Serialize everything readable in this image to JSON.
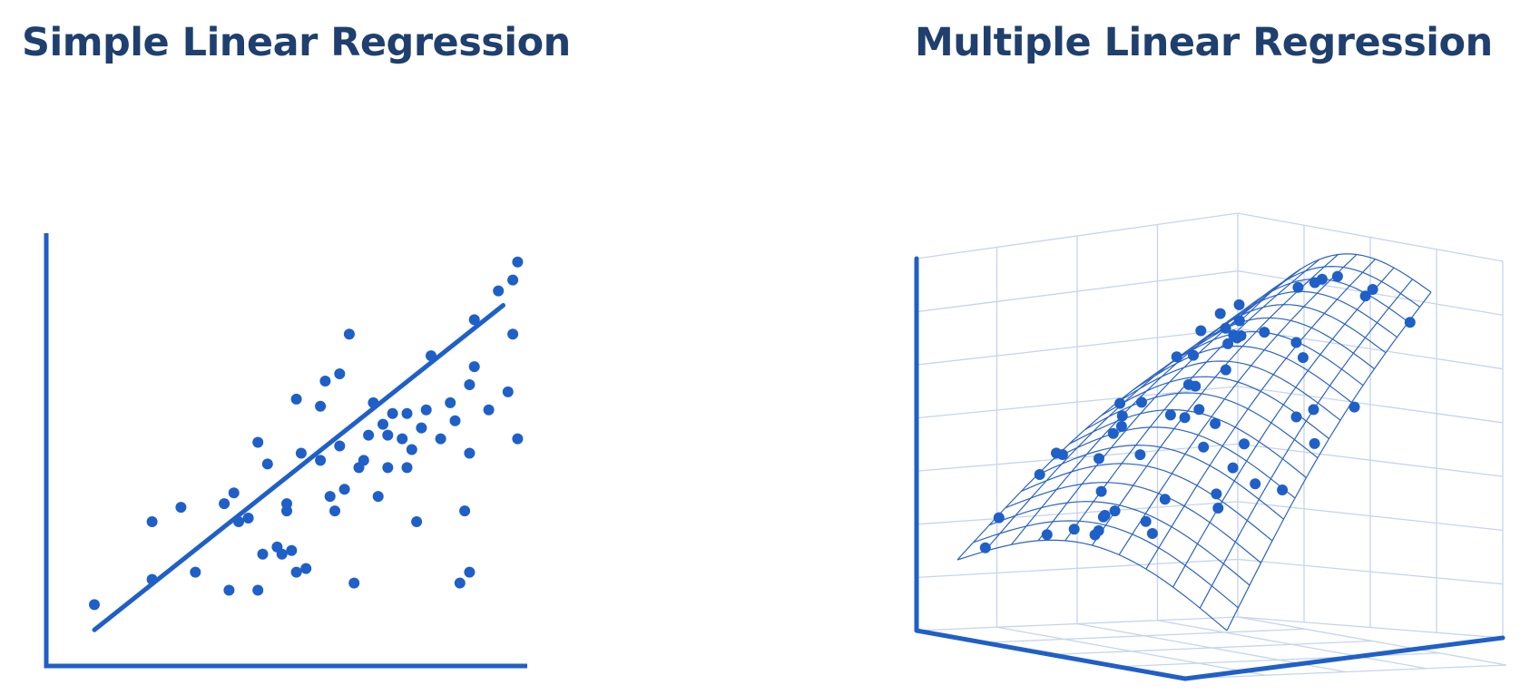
{
  "panels": {
    "left": {
      "title": "Simple Linear Regression"
    },
    "right": {
      "title": "Multiple Linear Regression"
    }
  },
  "colors": {
    "title": "#1f3f6e",
    "accent": "#1f5fc8",
    "grid": "#c6d4ee",
    "mesh": "#2c63c6"
  },
  "chart_data": [
    {
      "type": "scatter",
      "title": "Simple Linear Regression",
      "x": [
        10,
        22,
        22,
        28,
        31,
        37,
        38,
        39,
        40,
        42,
        44,
        44,
        45,
        46,
        48,
        49,
        50,
        50,
        51,
        52,
        52,
        53,
        54,
        57,
        57,
        58,
        59,
        60,
        61,
        61,
        62,
        63,
        64,
        65,
        66,
        67,
        68,
        69,
        70,
        71,
        71,
        72,
        74,
        75,
        75,
        76,
        77,
        78,
        79,
        80,
        82,
        84,
        85,
        86,
        87,
        88,
        88,
        88,
        89,
        89,
        92,
        94,
        96,
        97,
        97,
        98,
        98
      ],
      "y": [
        17,
        24,
        40,
        44,
        26,
        45,
        21,
        48,
        40,
        41,
        21,
        62,
        31,
        56,
        33,
        31,
        43,
        45,
        32,
        26,
        74,
        59,
        27,
        57,
        72,
        79,
        47,
        43,
        61,
        81,
        49,
        92,
        23,
        55,
        57,
        64,
        73,
        47,
        67,
        55,
        64,
        70,
        63,
        55,
        70,
        60,
        40,
        66,
        71,
        86,
        63,
        73,
        68,
        23,
        43,
        78,
        59,
        26,
        96,
        83,
        71,
        104,
        76,
        92,
        107,
        112,
        63
      ],
      "trend_line": {
        "x": [
          10,
          95
        ],
        "y": [
          10,
          100
        ]
      },
      "xlim": [
        0,
        100
      ],
      "ylim": [
        0,
        120
      ]
    },
    {
      "type": "scatter",
      "title": "Multiple Linear Regression",
      "dimensions": 3,
      "surface": "fitted mesh surface"
    }
  ]
}
